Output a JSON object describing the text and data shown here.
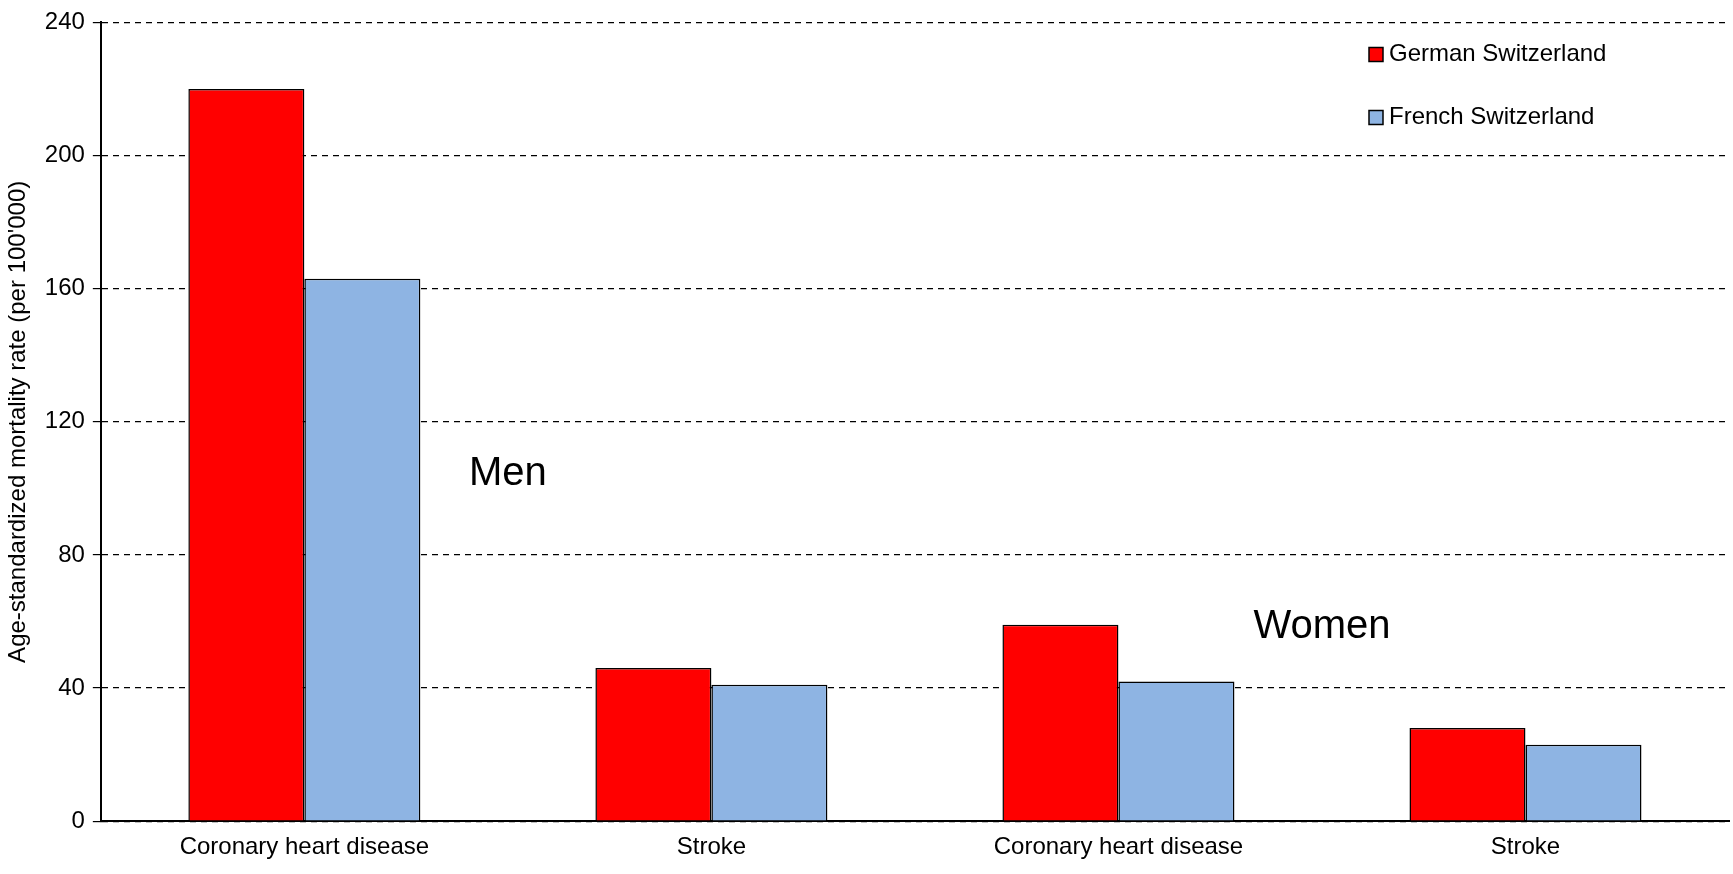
{
  "chart_data": {
    "type": "bar",
    "ylabel": "Age-standardized mortality rate (per 100'000)",
    "categories": [
      "Coronary heart disease",
      "Stroke",
      "Coronary heart disease",
      "Stroke"
    ],
    "series": [
      {
        "name": "German Switzerland",
        "color": "#ff0000",
        "values": [
          220,
          46,
          59,
          28
        ]
      },
      {
        "name": "French Switzerland",
        "color": "#8eb4e3",
        "values": [
          163,
          41,
          42,
          23
        ]
      }
    ],
    "ylim": [
      0,
      240
    ],
    "yticks": [
      0,
      40,
      80,
      120,
      160,
      200,
      240
    ],
    "grid": "y",
    "legend": "top right",
    "annotations": [
      "Men",
      "Women"
    ]
  }
}
